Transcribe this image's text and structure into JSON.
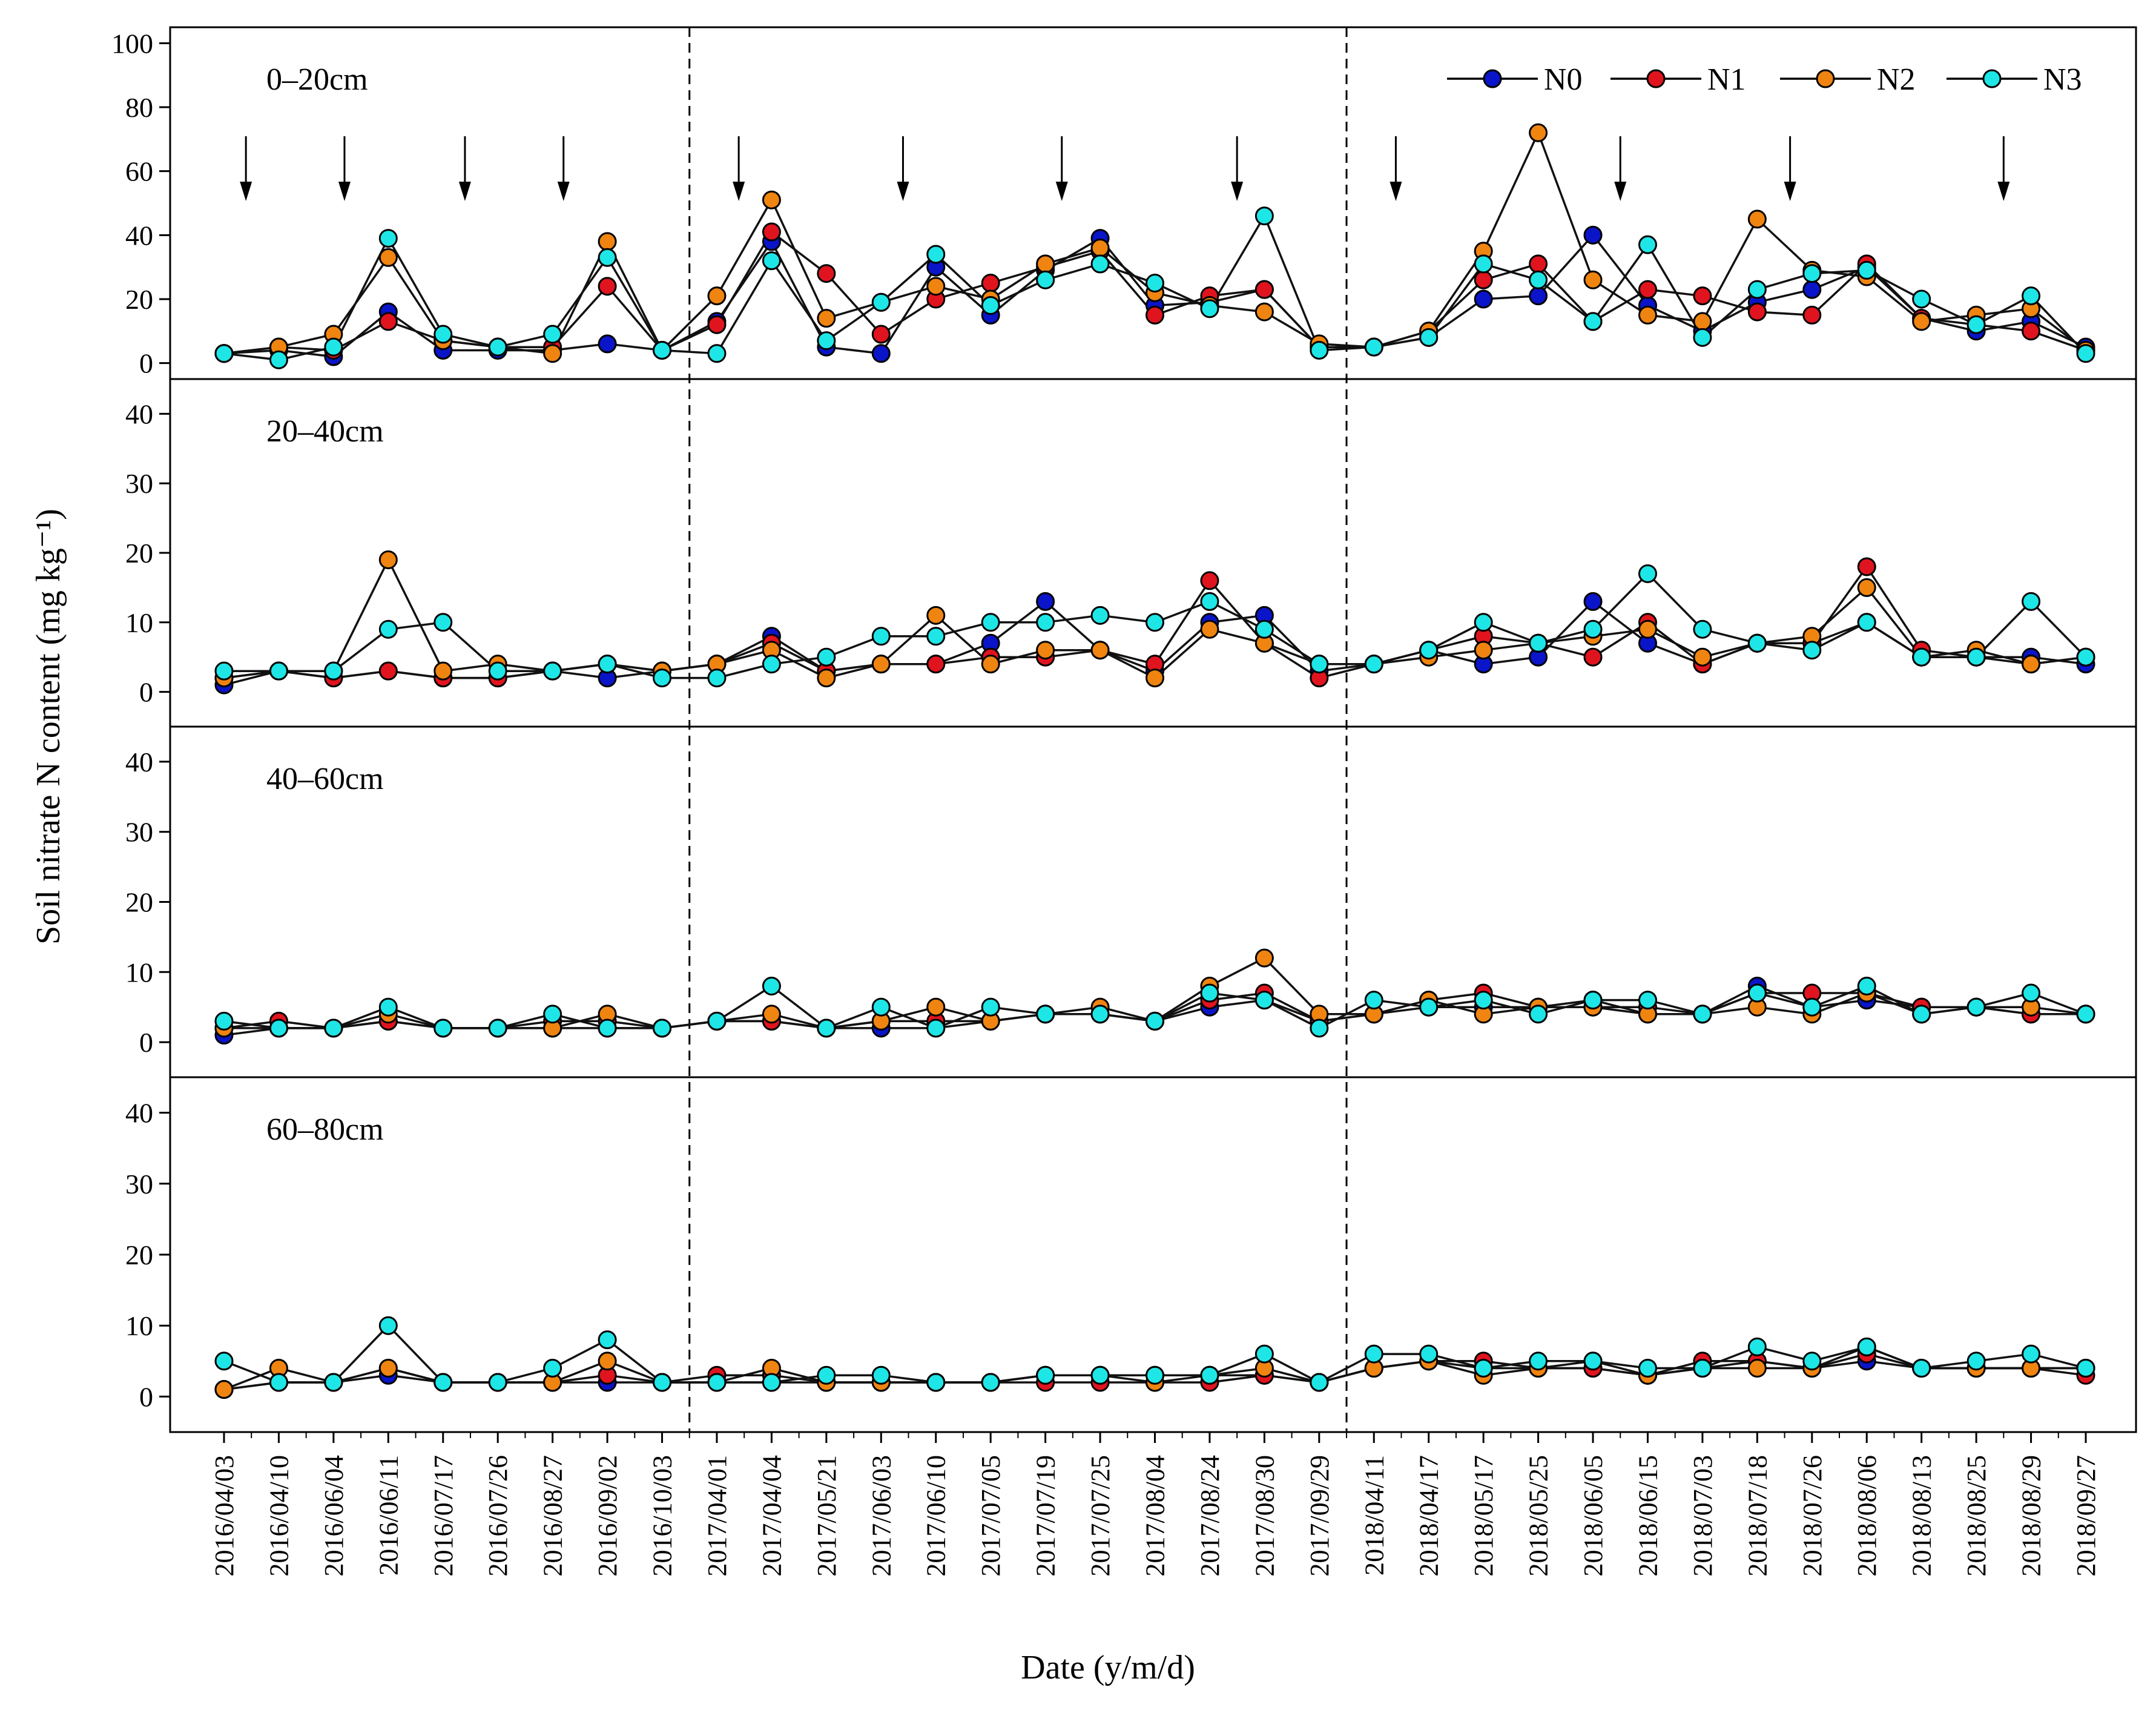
{
  "chart_data": {
    "type": "line",
    "ylabel": "Soil nitrate N content (mg kg⁻¹)",
    "xlabel": "Date (y/m/d)",
    "x": [
      "2016/04/03",
      "2016/04/10",
      "2016/06/04",
      "2016/06/11",
      "2016/07/17",
      "2016/07/26",
      "2016/08/27",
      "2016/09/02",
      "2016/10/03",
      "2017/04/01",
      "2017/04/04",
      "2017/05/21",
      "2017/06/03",
      "2017/06/10",
      "2017/07/05",
      "2017/07/19",
      "2017/07/25",
      "2017/08/04",
      "2017/08/24",
      "2017/08/30",
      "2017/09/29",
      "2018/04/11",
      "2018/04/17",
      "2018/05/17",
      "2018/05/25",
      "2018/06/05",
      "2018/06/15",
      "2018/07/03",
      "2018/07/18",
      "2018/07/26",
      "2018/08/06",
      "2018/08/13",
      "2018/08/25",
      "2018/08/29",
      "2018/09/27"
    ],
    "series_names": [
      "N0",
      "N1",
      "N2",
      "N3"
    ],
    "colors": [
      "#0a14c8",
      "#e0141e",
      "#ef8410",
      "#1ee6e6"
    ],
    "year_dividers_after_index": [
      8,
      20
    ],
    "arrows_between_index": [
      0.4,
      2.2,
      4.4,
      6.2,
      9.4,
      12.4,
      15.3,
      18.5,
      21.4,
      25.5,
      28.6,
      32.5
    ],
    "panels": [
      {
        "label": "0–20cm",
        "ylim": [
          -5,
          105
        ],
        "yticks": [
          0,
          20,
          40,
          60,
          80,
          100
        ],
        "series": [
          {
            "name": "N0",
            "values": [
              3,
              4,
              2,
              16,
              4,
              4,
              4,
              6,
              4,
              13,
              38,
              5,
              3,
              30,
              15,
              29,
              39,
              18,
              19,
              23,
              5,
              5,
              8,
              20,
              21,
              40,
              18,
              10,
              19,
              23,
              30,
              14,
              10,
              13,
              5
            ]
          },
          {
            "name": "N1",
            "values": [
              3,
              5,
              4,
              13,
              7,
              5,
              5,
              24,
              4,
              12,
              41,
              28,
              9,
              20,
              25,
              30,
              35,
              15,
              21,
              23,
              5,
              5,
              10,
              26,
              31,
              13,
              23,
              21,
              16,
              15,
              31,
              14,
              12,
              10,
              4
            ]
          },
          {
            "name": "N2",
            "values": [
              3,
              5,
              9,
              33,
              7,
              5,
              3,
              38,
              4,
              21,
              51,
              14,
              19,
              24,
              20,
              31,
              36,
              22,
              18,
              16,
              6,
              5,
              10,
              35,
              72,
              26,
              15,
              13,
              45,
              29,
              27,
              13,
              15,
              17,
              4
            ]
          },
          {
            "name": "N3",
            "values": [
              3,
              1,
              5,
              39,
              9,
              5,
              9,
              33,
              4,
              3,
              32,
              7,
              19,
              34,
              18,
              26,
              31,
              25,
              17,
              46,
              4,
              5,
              8,
              31,
              26,
              13,
              37,
              8,
              23,
              28,
              29,
              20,
              12,
              21,
              3
            ]
          }
        ]
      },
      {
        "label": "20–40cm",
        "ylim": [
          -5,
          45
        ],
        "yticks": [
          0,
          10,
          20,
          30,
          40
        ],
        "series": [
          {
            "name": "N0",
            "values": [
              1,
              3,
              2,
              3,
              2,
              2,
              3,
              2,
              3,
              4,
              8,
              3,
              4,
              4,
              7,
              13,
              6,
              3,
              10,
              11,
              3,
              4,
              6,
              4,
              5,
              13,
              7,
              4,
              7,
              7,
              10,
              5,
              5,
              5,
              4
            ]
          },
          {
            "name": "N1",
            "values": [
              2,
              3,
              2,
              3,
              2,
              2,
              3,
              4,
              3,
              4,
              7,
              3,
              4,
              4,
              5,
              5,
              6,
              4,
              16,
              7,
              2,
              4,
              6,
              8,
              7,
              5,
              10,
              4,
              7,
              7,
              18,
              6,
              5,
              4,
              5
            ]
          },
          {
            "name": "N2",
            "values": [
              2,
              3,
              3,
              19,
              3,
              4,
              3,
              4,
              3,
              4,
              6,
              2,
              4,
              11,
              4,
              6,
              6,
              2,
              9,
              7,
              4,
              4,
              5,
              6,
              7,
              8,
              9,
              5,
              7,
              8,
              15,
              5,
              6,
              4,
              5
            ]
          },
          {
            "name": "N3",
            "values": [
              3,
              3,
              3,
              9,
              10,
              3,
              3,
              4,
              2,
              2,
              4,
              5,
              8,
              8,
              10,
              10,
              11,
              10,
              13,
              9,
              4,
              4,
              6,
              10,
              7,
              9,
              17,
              9,
              7,
              6,
              10,
              5,
              5,
              13,
              5
            ]
          }
        ]
      },
      {
        "label": "40–60cm",
        "ylim": [
          -5,
          45
        ],
        "yticks": [
          0,
          10,
          20,
          30,
          40
        ],
        "series": [
          {
            "name": "N0",
            "values": [
              1,
              2,
              2,
              3,
              2,
              2,
              2,
              2,
              2,
              3,
              3,
              2,
              2,
              2,
              3,
              4,
              4,
              3,
              5,
              6,
              3,
              4,
              5,
              5,
              5,
              6,
              4,
              4,
              8,
              5,
              6,
              5,
              5,
              4,
              4
            ]
          },
          {
            "name": "N1",
            "values": [
              2,
              3,
              2,
              3,
              2,
              2,
              3,
              3,
              2,
              3,
              3,
              2,
              3,
              3,
              3,
              4,
              4,
              3,
              6,
              7,
              3,
              4,
              6,
              7,
              5,
              5,
              5,
              4,
              7,
              7,
              7,
              5,
              5,
              4,
              4
            ]
          },
          {
            "name": "N2",
            "values": [
              2,
              2,
              2,
              4,
              2,
              2,
              2,
              4,
              2,
              3,
              4,
              2,
              3,
              5,
              3,
              4,
              5,
              3,
              8,
              12,
              4,
              4,
              6,
              4,
              5,
              5,
              4,
              4,
              5,
              4,
              7,
              4,
              5,
              5,
              4
            ]
          },
          {
            "name": "N3",
            "values": [
              3,
              2,
              2,
              5,
              2,
              2,
              4,
              2,
              2,
              3,
              8,
              2,
              5,
              2,
              5,
              4,
              4,
              3,
              7,
              6,
              2,
              6,
              5,
              6,
              4,
              6,
              6,
              4,
              7,
              5,
              8,
              4,
              5,
              7,
              4
            ]
          }
        ]
      },
      {
        "label": "60–80cm",
        "ylim": [
          -5,
          45
        ],
        "yticks": [
          0,
          10,
          20,
          30,
          40
        ],
        "series": [
          {
            "name": "N0",
            "values": [
              1,
              2,
              2,
              3,
              2,
              2,
              2,
              2,
              2,
              2,
              2,
              2,
              2,
              2,
              2,
              3,
              3,
              3,
              3,
              3,
              2,
              4,
              5,
              4,
              4,
              4,
              3,
              4,
              5,
              4,
              5,
              4,
              4,
              4,
              4
            ]
          },
          {
            "name": "N1",
            "values": [
              1,
              2,
              2,
              4,
              2,
              2,
              2,
              3,
              2,
              3,
              3,
              2,
              2,
              2,
              2,
              2,
              2,
              2,
              2,
              3,
              2,
              4,
              5,
              5,
              4,
              4,
              3,
              5,
              5,
              4,
              6,
              4,
              4,
              4,
              3
            ]
          },
          {
            "name": "N2",
            "values": [
              1,
              4,
              2,
              4,
              2,
              2,
              2,
              5,
              2,
              2,
              4,
              2,
              2,
              2,
              2,
              3,
              3,
              2,
              3,
              4,
              2,
              4,
              5,
              3,
              4,
              5,
              3,
              4,
              4,
              4,
              7,
              4,
              4,
              4,
              4
            ]
          },
          {
            "name": "N3",
            "values": [
              5,
              2,
              2,
              10,
              2,
              2,
              4,
              8,
              2,
              2,
              2,
              3,
              3,
              2,
              2,
              3,
              3,
              3,
              3,
              6,
              2,
              6,
              6,
              4,
              5,
              5,
              4,
              4,
              7,
              5,
              7,
              4,
              5,
              6,
              4
            ]
          }
        ]
      }
    ]
  }
}
